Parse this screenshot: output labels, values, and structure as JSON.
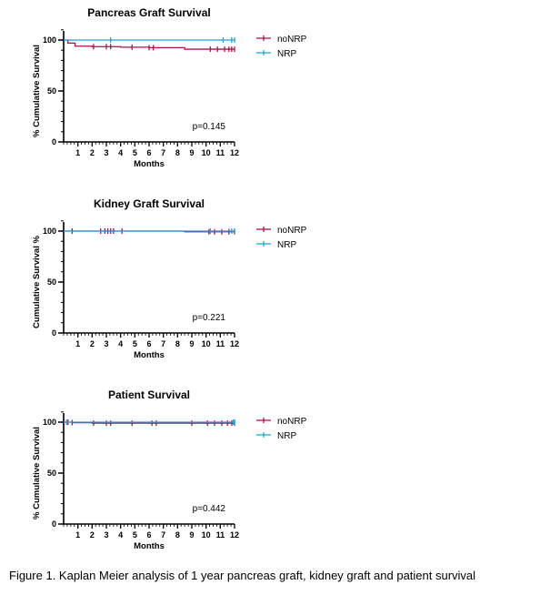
{
  "colors": {
    "noNRP": "#b0124a",
    "NRP": "#1aa3e0",
    "axis": "#000000"
  },
  "caption": "Figure 1. Kaplan Meier analysis of 1 year pancreas graft, kidney graft and patient survival",
  "chart_data": [
    {
      "type": "line",
      "title": "Pancreas Graft Survival",
      "xlabel": "Months",
      "ylabel": "% Cumulative Survival",
      "xlim": [
        0,
        12
      ],
      "ylim": [
        0,
        100
      ],
      "x_ticks": [
        1,
        2,
        3,
        4,
        5,
        6,
        7,
        8,
        9,
        10,
        11,
        12
      ],
      "y_ticks": [
        0,
        50,
        100
      ],
      "p_value": "p=0.145",
      "legend_position": "top-right",
      "series": [
        {
          "name": "noNRP",
          "step": [
            [
              0,
              100
            ],
            [
              0.3,
              97
            ],
            [
              0.8,
              94
            ],
            [
              2,
              93.5
            ],
            [
              4,
              93
            ],
            [
              6,
              92.5
            ],
            [
              8.5,
              91
            ],
            [
              12,
              91
            ]
          ],
          "censors": [
            [
              2.1,
              93.5
            ],
            [
              3,
              93.5
            ],
            [
              3.3,
              93.5
            ],
            [
              4.8,
              93
            ],
            [
              6,
              92.5
            ],
            [
              6.3,
              92.5
            ],
            [
              10.3,
              91
            ],
            [
              10.8,
              91
            ],
            [
              11.3,
              91
            ],
            [
              11.6,
              91
            ],
            [
              11.8,
              91
            ],
            [
              12,
              91
            ]
          ]
        },
        {
          "name": "NRP",
          "step": [
            [
              0,
              100
            ],
            [
              12,
              100
            ]
          ],
          "censors": [
            [
              3.3,
              100
            ],
            [
              11.2,
              100
            ],
            [
              11.8,
              100
            ],
            [
              12,
              100
            ]
          ]
        }
      ]
    },
    {
      "type": "line",
      "title": "Kidney Graft Survival",
      "xlabel": "Months",
      "ylabel": "Cumulative Survival %",
      "xlim": [
        0,
        12
      ],
      "ylim": [
        0,
        100
      ],
      "x_ticks": [
        1,
        2,
        3,
        4,
        5,
        6,
        7,
        8,
        9,
        10,
        11,
        12
      ],
      "y_ticks": [
        0,
        50,
        100
      ],
      "p_value": "p=0.221",
      "legend_position": "top-right",
      "series": [
        {
          "name": "noNRP",
          "step": [
            [
              0,
              100
            ],
            [
              8.5,
              99.3
            ],
            [
              12,
              99.3
            ]
          ],
          "censors": [
            [
              0.6,
              100
            ],
            [
              2.6,
              100
            ],
            [
              2.9,
              100
            ],
            [
              3.1,
              100
            ],
            [
              3.3,
              100
            ],
            [
              3.5,
              100
            ],
            [
              4.1,
              100
            ],
            [
              10.2,
              99.3
            ],
            [
              10.6,
              99.3
            ],
            [
              11.1,
              99.3
            ],
            [
              11.6,
              99.3
            ],
            [
              12,
              99.3
            ]
          ]
        },
        {
          "name": "NRP",
          "step": [
            [
              0,
              100
            ],
            [
              12,
              100
            ]
          ],
          "censors": [
            [
              10.3,
              100
            ],
            [
              11.8,
              100
            ],
            [
              12,
              100
            ]
          ]
        }
      ]
    },
    {
      "type": "line",
      "title": "Patient Survival",
      "xlabel": "Months",
      "ylabel": "% Cumulative Survival",
      "xlim": [
        0,
        12
      ],
      "ylim": [
        0,
        100
      ],
      "x_ticks": [
        1,
        2,
        3,
        4,
        5,
        6,
        7,
        8,
        9,
        10,
        11,
        12
      ],
      "y_ticks": [
        0,
        50,
        100
      ],
      "p_value": "p=0.442",
      "legend_position": "top-right",
      "series": [
        {
          "name": "noNRP",
          "step": [
            [
              0,
              100
            ],
            [
              0.6,
              99.5
            ],
            [
              2,
              99
            ],
            [
              12,
              99
            ]
          ],
          "censors": [
            [
              0.3,
              100
            ],
            [
              0.6,
              99.5
            ],
            [
              2.1,
              99
            ],
            [
              3,
              99
            ],
            [
              3.3,
              99
            ],
            [
              4.8,
              99
            ],
            [
              6.2,
              99
            ],
            [
              6.5,
              99
            ],
            [
              9,
              99
            ],
            [
              10.1,
              99
            ],
            [
              10.6,
              99
            ],
            [
              11.1,
              99
            ],
            [
              11.5,
              99
            ],
            [
              11.8,
              99
            ],
            [
              12,
              99
            ]
          ]
        },
        {
          "name": "NRP",
          "step": [
            [
              0,
              100
            ],
            [
              12,
              100
            ]
          ],
          "censors": [
            [
              0.2,
              100
            ],
            [
              11.9,
              100
            ],
            [
              12,
              100
            ]
          ]
        }
      ]
    }
  ]
}
